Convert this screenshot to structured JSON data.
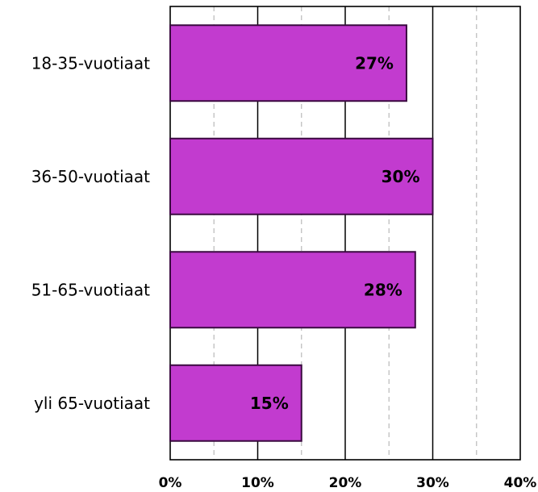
{
  "chart_data": {
    "type": "bar",
    "orientation": "horizontal",
    "categories": [
      "18-35-vuotiaat",
      "36-50-vuotiaat",
      "51-65-vuotiaat",
      "yli 65-vuotiaat"
    ],
    "values": [
      27,
      30,
      28,
      15
    ],
    "data_labels": [
      "27%",
      "30%",
      "28%",
      "15%"
    ],
    "title": "",
    "xlabel": "",
    "ylabel": "",
    "xlim": [
      0,
      40
    ],
    "x_ticks": [
      0,
      10,
      20,
      30,
      40
    ],
    "x_tick_labels": [
      "0%",
      "10%",
      "20%",
      "30%",
      "40%"
    ],
    "minor_gridlines": [
      5,
      15,
      25,
      35
    ],
    "grid": true,
    "legend": "none",
    "colors": {
      "bar_fill": "#c23bcf",
      "bar_stroke": "#3a0a40",
      "major_grid": "#000000",
      "minor_grid": "#bfbfbf"
    }
  }
}
